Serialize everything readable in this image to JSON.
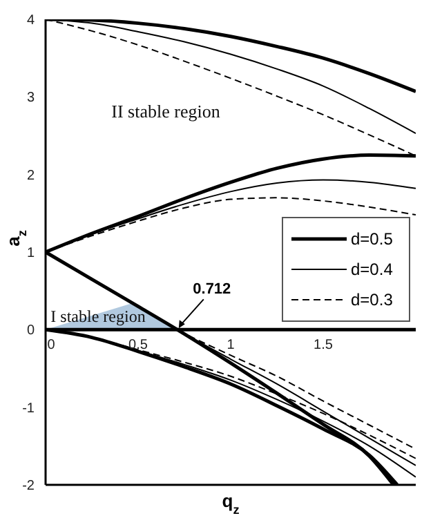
{
  "chart_data": {
    "type": "line",
    "xlabel": "q$_{z}$",
    "ylabel": "a$_{z}$",
    "xlim": [
      0,
      2
    ],
    "ylim": [
      -2,
      4
    ],
    "xticks": [
      0,
      0.5,
      1,
      1.5
    ],
    "yticks": [
      -2,
      -1,
      0,
      1,
      2,
      3,
      4
    ],
    "legend": "right",
    "marker": "none",
    "annotations": [
      "II stable region",
      "I stable region",
      {
        "text": "0.712",
        "x": 0.712,
        "y": 0
      }
    ],
    "series": [
      {
        "name": "d=0.5",
        "color": "#000000",
        "line_style": "solid",
        "x": [
          0,
          0.25,
          0.5,
          0.75,
          1,
          1.25,
          1.5,
          1.75,
          2
        ],
        "values": [
          4,
          3.99,
          3.95,
          3.88,
          3.78,
          3.65,
          3.5,
          3.3,
          3.07
        ]
      },
      {
        "name": "d=0.4",
        "color": "#000000",
        "line_style": "solid",
        "x": [
          0,
          0.25,
          0.5,
          0.75,
          1,
          1.25,
          1.5,
          1.75,
          2
        ],
        "values": [
          4,
          3.95,
          3.84,
          3.71,
          3.55,
          3.36,
          3.14,
          2.85,
          2.53
        ]
      },
      {
        "name": "d=0.3",
        "color": "#000000",
        "line_style": "dashed",
        "x": [
          0,
          0.25,
          0.5,
          0.75,
          1,
          1.25,
          1.5,
          1.75,
          2
        ],
        "values": [
          4,
          3.85,
          3.67,
          3.46,
          3.24,
          3.01,
          2.77,
          2.51,
          2.24
        ]
      },
      {
        "color": "#000000",
        "line_style": "solid",
        "x": [
          0,
          0.25,
          0.5,
          0.75,
          1,
          1.25,
          1.5,
          1.75,
          2
        ],
        "values": [
          1,
          1.24,
          1.46,
          1.69,
          1.9,
          2.08,
          2.2,
          2.25,
          2.24
        ]
      },
      {
        "color": "#000000",
        "line_style": "solid",
        "x": [
          0,
          0.25,
          0.5,
          0.75,
          1,
          1.25,
          1.5,
          1.75,
          2
        ],
        "values": [
          1,
          1.23,
          1.43,
          1.62,
          1.78,
          1.89,
          1.93,
          1.9,
          1.82
        ]
      },
      {
        "color": "#000000",
        "line_style": "dashed",
        "x": [
          0,
          0.25,
          0.5,
          0.75,
          1,
          1.25,
          1.5,
          1.75,
          2
        ],
        "values": [
          1,
          1.21,
          1.4,
          1.57,
          1.68,
          1.7,
          1.66,
          1.58,
          1.48
        ]
      },
      {
        "color": "#000000",
        "line_style": "solid",
        "x": [
          0,
          0.25,
          0.5,
          0.712,
          1,
          1.25,
          1.5,
          1.75,
          1.88
        ],
        "values": [
          1,
          0.65,
          0.3,
          0,
          -0.43,
          -0.82,
          -1.22,
          -1.63,
          -2
        ]
      },
      {
        "color": "#000000",
        "line_style": "solid",
        "x": [
          0,
          0.25,
          0.5,
          0.712,
          1,
          1.25,
          1.5,
          1.75,
          2
        ],
        "values": [
          1,
          0.65,
          0.3,
          0,
          -0.38,
          -0.7,
          -1.05,
          -1.4,
          -1.75
        ]
      },
      {
        "color": "#000000",
        "line_style": "dashed",
        "x": [
          0,
          0.25,
          0.5,
          0.712,
          1,
          1.25,
          1.5,
          1.75,
          2
        ],
        "values": [
          1,
          0.65,
          0.3,
          0,
          -0.33,
          -0.6,
          -0.92,
          -1.23,
          -1.54
        ]
      },
      {
        "color": "#000000",
        "line_style": "solid",
        "x": [
          0,
          0.25,
          0.5,
          0.75,
          1,
          1.25,
          1.5,
          1.75,
          1.9
        ],
        "values": [
          0,
          -0.1,
          -0.28,
          -0.48,
          -0.7,
          -0.98,
          -1.28,
          -1.62,
          -2
        ]
      },
      {
        "color": "#000000",
        "line_style": "solid",
        "x": [
          0,
          0.25,
          0.5,
          0.75,
          1,
          1.25,
          1.5,
          1.75,
          2
        ],
        "values": [
          0,
          -0.1,
          -0.27,
          -0.45,
          -0.65,
          -0.9,
          -1.18,
          -1.5,
          -1.9
        ]
      },
      {
        "color": "#000000",
        "line_style": "dashed",
        "x": [
          0,
          0.25,
          0.5,
          0.75,
          1,
          1.25,
          1.5,
          1.75,
          2
        ],
        "values": [
          0,
          -0.1,
          -0.26,
          -0.42,
          -0.6,
          -0.83,
          -1.08,
          -1.36,
          -1.66
        ]
      },
      {
        "type": "area",
        "color": "#a8c3dc",
        "x": [
          0,
          0.48,
          0.712
        ],
        "values": [
          0,
          0.35,
          0
        ]
      }
    ]
  }
}
